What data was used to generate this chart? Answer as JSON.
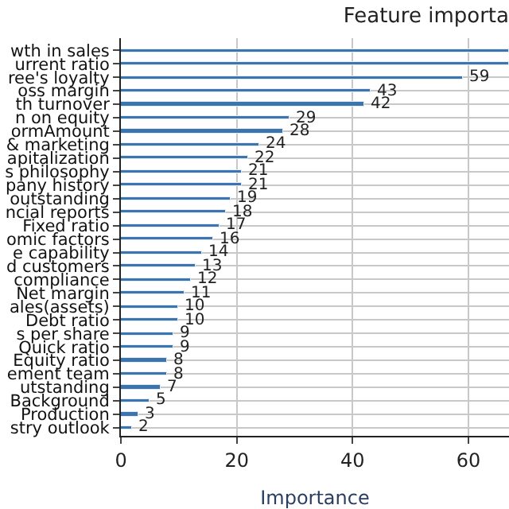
{
  "chart_data": {
    "type": "bar",
    "orientation": "horizontal",
    "title": "Feature importa",
    "xlabel": "Importance",
    "categories": [
      "wth in sales",
      "urrent ratio",
      "ree's loyalty",
      "oss margin",
      "th turnover",
      "n on equity",
      "ormAmount",
      "& marketing",
      "apitalization",
      "s philosophy",
      "pany history",
      "outstanding",
      "ncial reports",
      "Fixed ratio",
      "omic factors",
      "e capability",
      "d customers",
      "compliance",
      "Net margin",
      "ales(assets)",
      "Debt ratio",
      "s per share",
      "Quick ratio",
      "Equity ratio",
      "ement team",
      "utstanding",
      "Background",
      "Production",
      "stry outlook"
    ],
    "values": [
      67,
      67,
      59,
      43,
      42,
      29,
      28,
      24,
      22,
      21,
      21,
      19,
      18,
      17,
      16,
      14,
      13,
      12,
      11,
      10,
      10,
      9,
      9,
      8,
      8,
      7,
      5,
      3,
      2
    ],
    "value_labels": [
      null,
      null,
      "59",
      "43",
      "42",
      "29",
      "28",
      "24",
      "22",
      "21",
      "21",
      "19",
      "18",
      "17",
      "16",
      "14",
      "13",
      "12",
      "11",
      "10",
      "10",
      "9",
      "9",
      "8",
      "8",
      "7",
      "5",
      "3",
      "2"
    ],
    "color": "#3a75ad",
    "xlim": [
      0,
      67
    ],
    "xticks": [
      0,
      20,
      40,
      60
    ],
    "grid": true
  }
}
